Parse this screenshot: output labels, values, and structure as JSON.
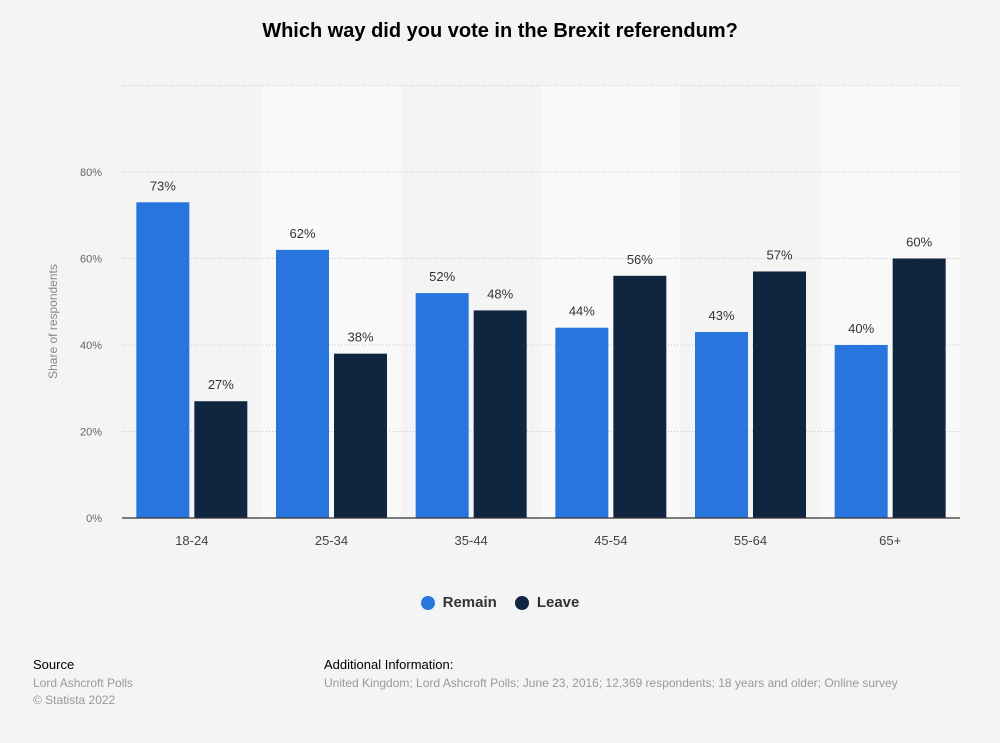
{
  "chart_data": {
    "type": "bar",
    "title": "Which way did you vote in the Brexit referendum?",
    "xlabel": "",
    "ylabel": "Share of respondents",
    "ylim": [
      0,
      100
    ],
    "yticks": [
      "0%",
      "20%",
      "40%",
      "60%",
      "80%"
    ],
    "categories": [
      "18-24",
      "25-34",
      "35-44",
      "45-54",
      "55-64",
      "65+"
    ],
    "series": [
      {
        "name": "Remain",
        "color": "#2876dd",
        "values": [
          73,
          62,
          52,
          44,
          43,
          40
        ],
        "labels": [
          "73%",
          "62%",
          "52%",
          "44%",
          "43%",
          "40%"
        ]
      },
      {
        "name": "Leave",
        "color": "#10253f",
        "values": [
          27,
          38,
          48,
          56,
          57,
          60
        ],
        "labels": [
          "27%",
          "38%",
          "48%",
          "56%",
          "57%",
          "60%"
        ]
      }
    ],
    "legend_position": "bottom"
  },
  "footer": {
    "source_label": "Source",
    "source_lines": [
      "Lord Ashcroft Polls",
      "© Statista 2022"
    ],
    "info_label": "Additional Information:",
    "info_text": "United Kingdom; Lord Ashcroft Polls; June 23, 2016; 12,369 respondents; 18 years and older; Online survey"
  }
}
